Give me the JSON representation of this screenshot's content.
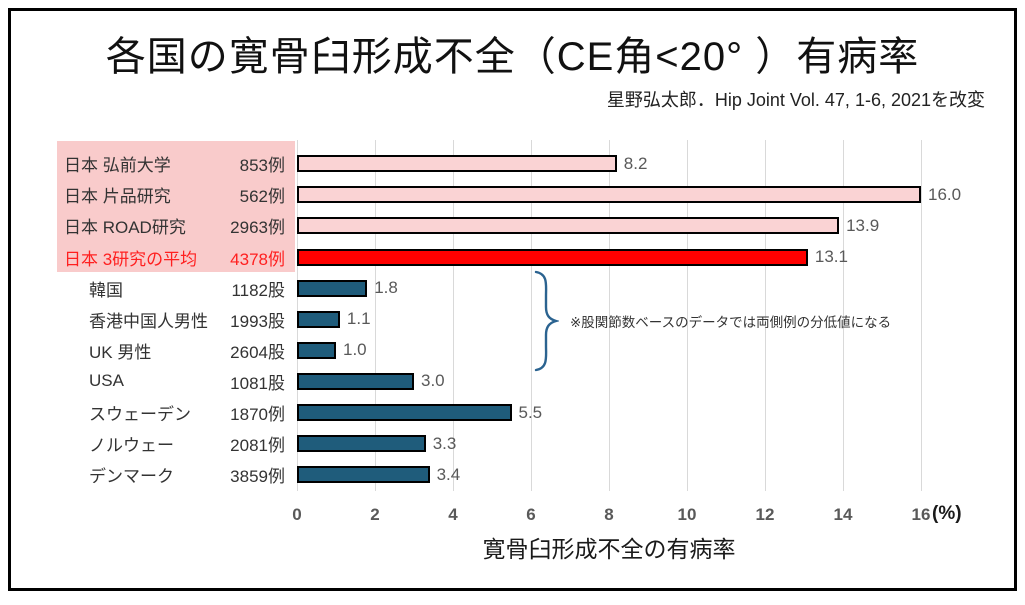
{
  "title": "各国の寛骨臼形成不全（CE角<20° ）有病率",
  "subtitle": "星野弘太郎．Hip Joint Vol. 47, 1-6, 2021を改変",
  "chart_data": {
    "type": "bar",
    "orientation": "horizontal",
    "categories": [
      "日本 弘前大学",
      "日本 片品研究",
      "日本 ROAD研究",
      "日本 3研究の平均",
      "韓国",
      "香港中国人男性",
      "UK 男性",
      "USA",
      "スウェーデン",
      "ノルウェー",
      "デンマーク"
    ],
    "sample_sizes": [
      "853例",
      "562例",
      "2963例",
      "4378例",
      "1182股",
      "1993股",
      "2604股",
      "1081股",
      "1870例",
      "2081例",
      "3859例"
    ],
    "values": [
      8.2,
      16.0,
      13.9,
      13.1,
      1.8,
      1.1,
      1.0,
      3.0,
      5.5,
      3.3,
      3.4
    ],
    "display_values": [
      "8.2",
      "16.0",
      "13.9",
      "13.1",
      "1.8",
      "1.1",
      "1.0",
      "3.0",
      "5.5",
      "3.3",
      "3.4"
    ],
    "xlim": [
      0,
      16
    ],
    "xticks": [
      0,
      2,
      4,
      6,
      8,
      10,
      12,
      14,
      16
    ],
    "xtick_labels": [
      "0",
      "2",
      "4",
      "6",
      "8",
      "10",
      "12",
      "14",
      "16"
    ],
    "x_unit": "(%)",
    "xlabel": "寛骨臼形成不全の有病率",
    "annotation": "※股関節数ベースのデータでは両側例の分低値になる",
    "grid": true,
    "colors": {
      "japan_bar": "#FAD3D4",
      "japan_avg_bar": "#FF0000",
      "other_bar": "#1F5C7B",
      "bar_border": "#000000",
      "highlight_bg": "#F9CBCB",
      "highlight_text": "#FF1F1F",
      "gridline": "#D9D9D9",
      "value_text": "#595959",
      "brace": "#2B6390"
    }
  }
}
